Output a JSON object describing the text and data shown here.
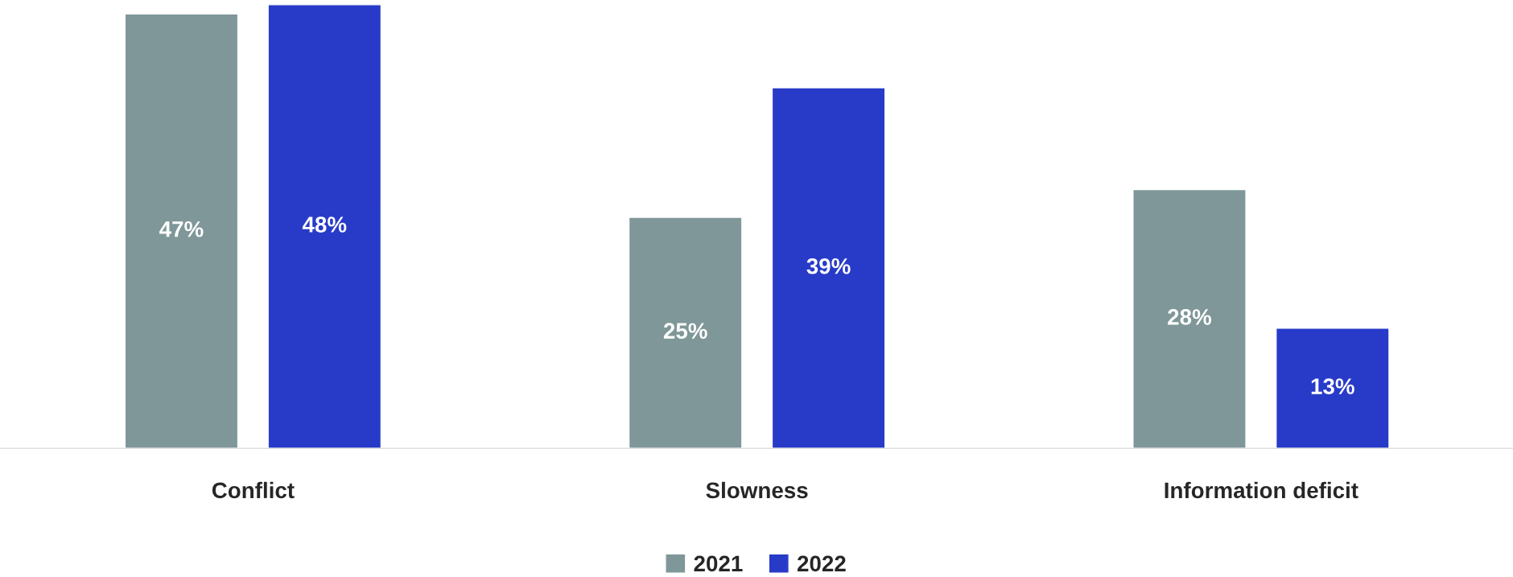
{
  "chart_data": {
    "type": "bar",
    "categories": [
      "Conflict",
      "Slowness",
      "Information deficit"
    ],
    "series": [
      {
        "name": "2021",
        "color": "#7f9799",
        "values": [
          47,
          25,
          28
        ],
        "value_labels": [
          "47%",
          "25%",
          "28%"
        ]
      },
      {
        "name": "2022",
        "color": "#283bc8",
        "values": [
          48,
          39,
          13
        ],
        "value_labels": [
          "48%",
          "39%",
          "13%"
        ]
      }
    ],
    "legend": "bottom",
    "grid": false,
    "tick_labels": "x"
  }
}
